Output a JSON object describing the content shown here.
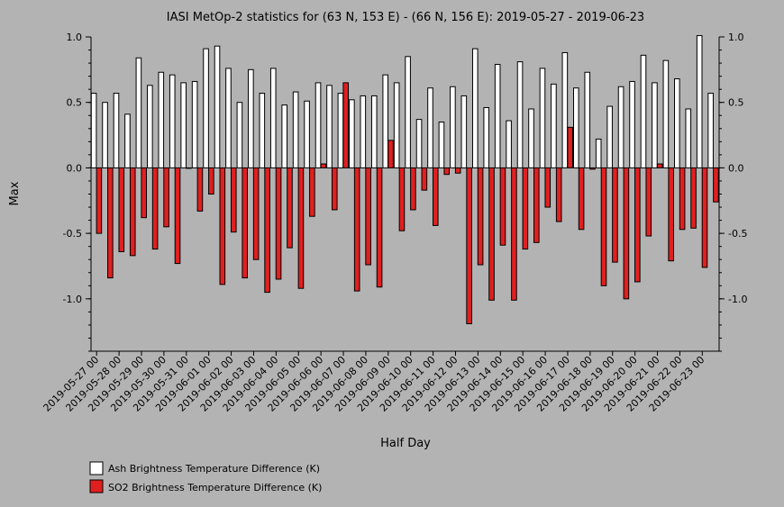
{
  "chart_data": {
    "type": "bar",
    "title": "IASI MetOp-2 statistics for (63 N, 153 E) - (66 N, 156 E): 2019-05-27 - 2019-06-23",
    "xlabel": "Half Day",
    "ylabel": "Max",
    "ylim": [
      -1.4,
      1.0
    ],
    "yticks": [
      1.0,
      0.5,
      0.0,
      -0.5,
      -1.0
    ],
    "ytick_labels": [
      "1.0",
      "0.5",
      "0.0",
      "-0.5",
      "-1.0"
    ],
    "grid": false,
    "legend_position": "bottom-left",
    "categories": [
      "2019-05-27 00",
      "2019-05-27 12",
      "2019-05-28 00",
      "2019-05-28 12",
      "2019-05-29 00",
      "2019-05-29 12",
      "2019-05-30 00",
      "2019-05-30 12",
      "2019-05-31 00",
      "2019-05-31 12",
      "2019-06-01 00",
      "2019-06-01 12",
      "2019-06-02 00",
      "2019-06-02 12",
      "2019-06-03 00",
      "2019-06-03 12",
      "2019-06-04 00",
      "2019-06-04 12",
      "2019-06-05 00",
      "2019-06-05 12",
      "2019-06-06 00",
      "2019-06-06 12",
      "2019-06-07 00",
      "2019-06-07 12",
      "2019-06-08 00",
      "2019-06-08 12",
      "2019-06-09 00",
      "2019-06-09 12",
      "2019-06-10 00",
      "2019-06-10 12",
      "2019-06-11 00",
      "2019-06-11 12",
      "2019-06-12 00",
      "2019-06-12 12",
      "2019-06-13 00",
      "2019-06-13 12",
      "2019-06-14 00",
      "2019-06-14 12",
      "2019-06-15 00",
      "2019-06-15 12",
      "2019-06-16 00",
      "2019-06-16 12",
      "2019-06-17 00",
      "2019-06-17 12",
      "2019-06-18 00",
      "2019-06-18 12",
      "2019-06-19 00",
      "2019-06-19 12",
      "2019-06-20 00",
      "2019-06-20 12",
      "2019-06-21 00",
      "2019-06-21 12",
      "2019-06-22 00",
      "2019-06-22 12",
      "2019-06-23 00",
      "2019-06-23 12"
    ],
    "xtick_labels": [
      "2019-05-27 00",
      "2019-05-28 00",
      "2019-05-29 00",
      "2019-05-30 00",
      "2019-05-31 00",
      "2019-06-01 00",
      "2019-06-02 00",
      "2019-06-03 00",
      "2019-06-04 00",
      "2019-06-05 00",
      "2019-06-06 00",
      "2019-06-07 00",
      "2019-06-08 00",
      "2019-06-09 00",
      "2019-06-10 00",
      "2019-06-11 00",
      "2019-06-12 00",
      "2019-06-13 00",
      "2019-06-14 00",
      "2019-06-15 00",
      "2019-06-16 00",
      "2019-06-17 00",
      "2019-06-18 00",
      "2019-06-19 00",
      "2019-06-20 00",
      "2019-06-21 00",
      "2019-06-22 00",
      "2019-06-23 00"
    ],
    "series": [
      {
        "name": "Ash Brightness Temperature Difference (K)",
        "color": "#ffffff",
        "values": [
          0.57,
          0.5,
          0.57,
          0.41,
          0.84,
          0.63,
          0.73,
          0.71,
          0.65,
          0.66,
          0.91,
          0.93,
          0.76,
          0.5,
          0.75,
          0.57,
          0.76,
          0.48,
          0.58,
          0.51,
          0.65,
          0.63,
          0.57,
          0.52,
          0.55,
          0.55,
          0.71,
          0.65,
          0.85,
          0.37,
          0.61,
          0.35,
          0.62,
          0.55,
          0.91,
          0.46,
          0.79,
          0.36,
          0.81,
          0.45,
          0.76,
          0.64,
          0.88,
          0.61,
          0.73,
          0.22,
          0.47,
          0.62,
          0.66,
          0.86,
          0.65,
          0.82,
          0.68,
          0.45,
          1.01,
          0.57
        ]
      },
      {
        "name": "SO2 Brightness Temperature Difference (K)",
        "color": "#e02020",
        "values": [
          -0.5,
          -0.84,
          -0.64,
          -0.67,
          -0.38,
          -0.62,
          -0.45,
          -0.73,
          0.0,
          -0.33,
          -0.2,
          -0.89,
          -0.49,
          -0.84,
          -0.7,
          -0.95,
          -0.85,
          -0.61,
          -0.92,
          -0.37,
          0.03,
          -0.32,
          0.65,
          -0.94,
          -0.74,
          -0.91,
          0.21,
          -0.48,
          -0.32,
          -0.17,
          -0.44,
          -0.05,
          -0.04,
          -1.19,
          -0.74,
          -1.01,
          -0.59,
          -1.01,
          -0.62,
          -0.57,
          -0.3,
          -0.41,
          0.31,
          -0.47,
          -0.01,
          -0.9,
          -0.72,
          -1.0,
          -0.87,
          -0.52,
          0.03,
          -0.71,
          -0.47,
          -0.46,
          -0.76,
          -0.26
        ]
      }
    ]
  }
}
